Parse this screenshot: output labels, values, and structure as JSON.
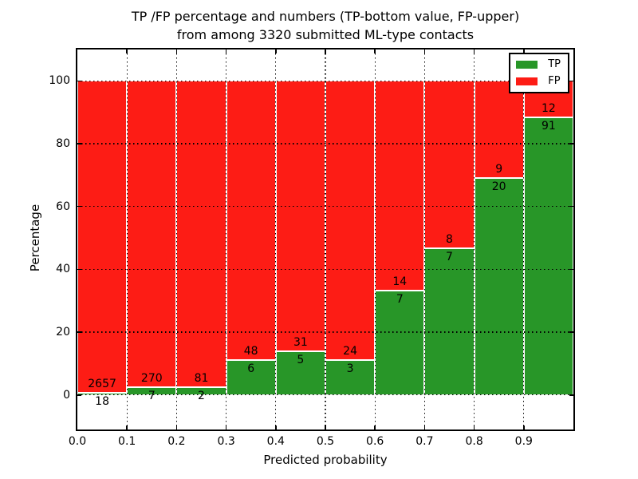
{
  "figure": {
    "title_line1": "TP /FP percentage and numbers (TP-bottom value, FP-upper)",
    "title_line2": "from among 3320 submitted ML-type contacts",
    "xlabel": "Predicted probability",
    "ylabel": "Percentage"
  },
  "colors": {
    "tp_green": "#289628",
    "fp_red": "#fd1c15",
    "bar_edge": "#ffffff",
    "axis": "#000000",
    "background": "#ffffff"
  },
  "chart_data": {
    "type": "bar",
    "stacked": true,
    "normalized_to_percent": true,
    "title": "TP /FP percentage and numbers (TP-bottom value, FP-upper) from among 3320 submitted ML-type contacts",
    "xlabel": "Predicted probability",
    "ylabel": "Percentage",
    "total_contacts": 3320,
    "categories": [
      "0.0-0.1",
      "0.1-0.2",
      "0.2-0.3",
      "0.3-0.4",
      "0.4-0.5",
      "0.5-0.6",
      "0.6-0.7",
      "0.7-0.8",
      "0.8-0.9",
      "0.9-1.0"
    ],
    "series": [
      {
        "name": "TP",
        "color": "#289628",
        "counts": [
          18,
          7,
          2,
          6,
          5,
          3,
          7,
          7,
          20,
          91
        ],
        "percent": [
          0.67,
          2.53,
          2.41,
          11.11,
          13.89,
          11.11,
          33.33,
          46.67,
          68.97,
          88.35
        ]
      },
      {
        "name": "FP",
        "color": "#fd1c15",
        "counts": [
          2657,
          270,
          81,
          48,
          31,
          24,
          14,
          8,
          9,
          12
        ],
        "percent": [
          99.33,
          97.47,
          97.59,
          88.89,
          86.11,
          88.89,
          66.67,
          53.33,
          31.03,
          11.65
        ]
      }
    ],
    "xticks": [
      "0.0",
      "0.1",
      "0.2",
      "0.3",
      "0.4",
      "0.5",
      "0.6",
      "0.7",
      "0.8",
      "0.9"
    ],
    "yticks": [
      0,
      20,
      40,
      60,
      80,
      100
    ],
    "xlim": [
      0.0,
      1.0
    ],
    "ylim": [
      -11,
      110
    ],
    "grid": "dotted",
    "legend": {
      "position": "upper right",
      "entries": [
        {
          "label": "TP",
          "color": "#289628"
        },
        {
          "label": "FP",
          "color": "#fd1c15"
        }
      ]
    }
  }
}
